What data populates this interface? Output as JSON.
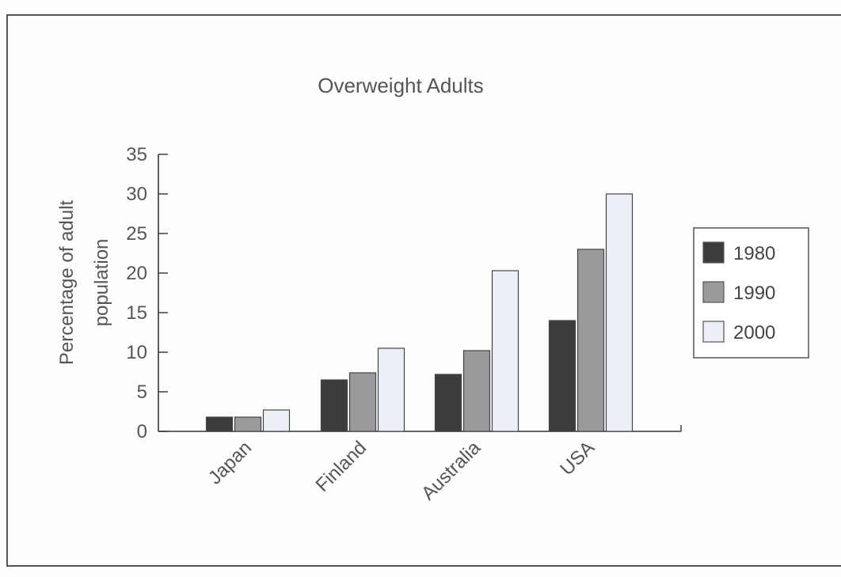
{
  "chart_data": {
    "type": "bar",
    "title": "Overweight Adults",
    "xlabel": "",
    "ylabel_lines": [
      "Percentage of adult",
      "population"
    ],
    "categories": [
      "Japan",
      "Finland",
      "Australia",
      "USA"
    ],
    "series": [
      {
        "name": "1980",
        "color": "#3e3b3c",
        "values": [
          1.8,
          6.5,
          7.2,
          14
        ]
      },
      {
        "name": "1990",
        "color": "#9a9a9c",
        "values": [
          1.8,
          7.4,
          10.2,
          23
        ]
      },
      {
        "name": "2000",
        "color": "#eceff8",
        "values": [
          2.7,
          10.5,
          20.3,
          30
        ]
      }
    ],
    "ylim": [
      0,
      35
    ],
    "yticks": [
      0,
      5,
      10,
      15,
      20,
      25,
      30,
      35
    ],
    "grid": false,
    "legend_position": "right"
  }
}
